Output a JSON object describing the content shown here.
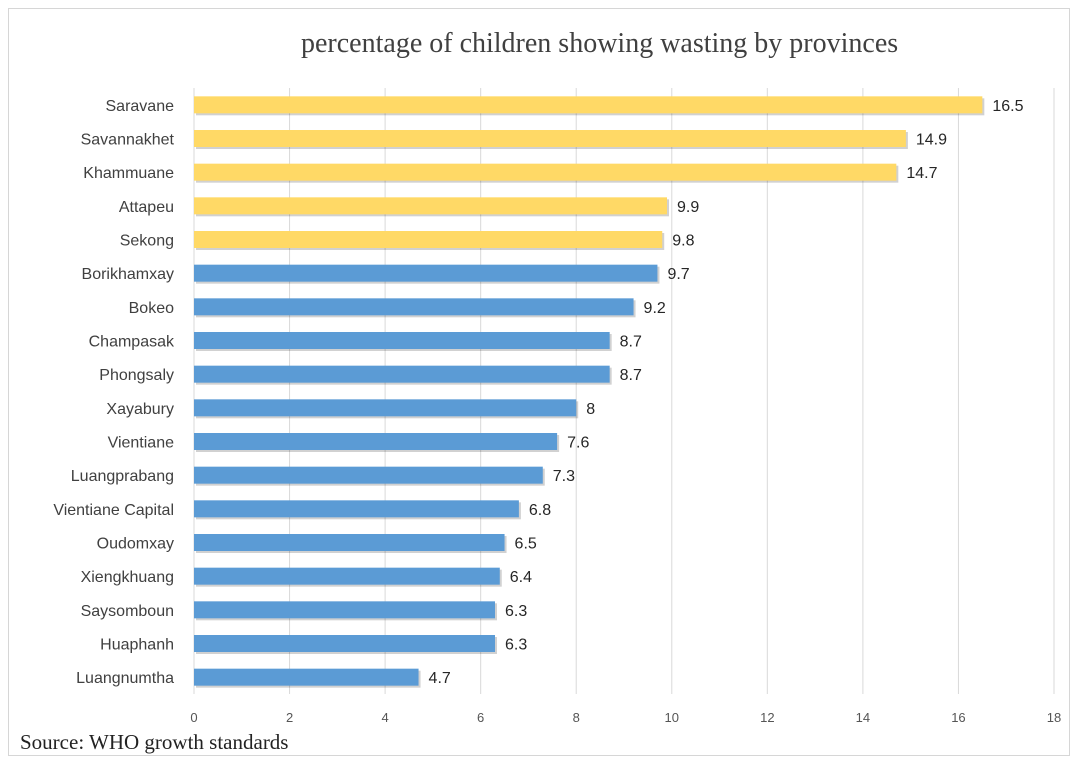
{
  "chart_data": {
    "type": "bar",
    "orientation": "horizontal",
    "title": "percentage of children showing wasting by provinces",
    "categories": [
      "Saravane",
      "Savannakhet",
      "Khammuane",
      "Attapeu",
      "Sekong",
      "Borikhamxay",
      "Bokeo",
      "Champasak",
      "Phongsaly",
      "Xayabury",
      "Vientiane ",
      "Luangprabang",
      "Vientiane Capital",
      "Oudomxay",
      "Xiengkhuang",
      "Saysomboun",
      "Huaphanh",
      "Luangnumtha"
    ],
    "values": [
      16.5,
      14.9,
      14.7,
      9.9,
      9.8,
      9.7,
      9.2,
      8.7,
      8.7,
      8,
      7.6,
      7.3,
      6.8,
      6.5,
      6.4,
      6.3,
      6.3,
      4.7
    ],
    "value_labels": [
      "16.5",
      "14.9",
      "14.7",
      "9.9",
      "9.8",
      "9.7",
      "9.2",
      "8.7",
      "8.7",
      "8",
      "7.6",
      "7.3",
      "6.8",
      "6.5",
      "6.4",
      "6.3",
      "6.3",
      "4.7"
    ],
    "bar_colors": [
      "#FFD966",
      "#FFD966",
      "#FFD966",
      "#FFD966",
      "#FFD966",
      "#5B9BD5",
      "#5B9BD5",
      "#5B9BD5",
      "#5B9BD5",
      "#5B9BD5",
      "#5B9BD5",
      "#5B9BD5",
      "#5B9BD5",
      "#5B9BD5",
      "#5B9BD5",
      "#5B9BD5",
      "#5B9BD5",
      "#5B9BD5"
    ],
    "xlim": [
      0,
      18
    ],
    "xticks": [
      0,
      2,
      4,
      6,
      8,
      10,
      12,
      14,
      16,
      18
    ],
    "xtick_labels": [
      "0",
      "2",
      "4",
      "6",
      "8",
      "10",
      "12",
      "14",
      "16",
      "18"
    ],
    "xlabel": "",
    "ylabel": "",
    "grid": "vertical",
    "legend": "none"
  },
  "source_note": "Source: WHO growth standards",
  "colors": {
    "highlight": "#FFD966",
    "base": "#5B9BD5",
    "grid": "#d9d9d9"
  }
}
